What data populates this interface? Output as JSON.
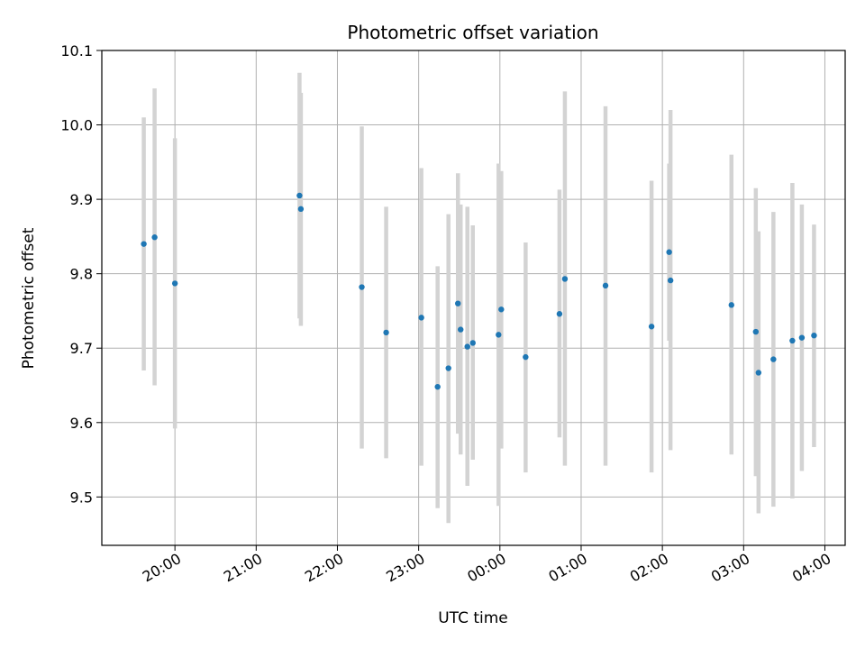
{
  "chart_data": {
    "type": "scatter",
    "title": "Photometric offset variation",
    "xlabel": "UTC time",
    "ylabel": "Photometric offset",
    "grid": true,
    "x_ticks": [
      "20:00",
      "21:00",
      "22:00",
      "23:00",
      "00:00",
      "01:00",
      "02:00",
      "03:00",
      "04:00"
    ],
    "x_tick_minutes": [
      1200,
      1260,
      1320,
      1380,
      1440,
      1500,
      1560,
      1620,
      1680
    ],
    "y_ticks": [
      "9.5",
      "9.6",
      "9.7",
      "9.8",
      "9.9",
      "10.0",
      "10.1"
    ],
    "y_tick_values": [
      9.5,
      9.6,
      9.7,
      9.8,
      9.9,
      10.0,
      10.1
    ],
    "xlim_minutes": [
      1146,
      1695
    ],
    "ylim": [
      9.435,
      10.1
    ],
    "marker_color": "#1f77b4",
    "errorbar_color": "#d3d3d3",
    "points": [
      {
        "t": "19:37",
        "y": 9.84,
        "lo": 9.67,
        "hi": 10.01
      },
      {
        "t": "19:45",
        "y": 9.849,
        "lo": 9.65,
        "hi": 10.049
      },
      {
        "t": "20:00",
        "y": 9.787,
        "lo": 9.592,
        "hi": 9.982
      },
      {
        "t": "21:32",
        "y": 9.905,
        "lo": 9.74,
        "hi": 10.07
      },
      {
        "t": "21:33",
        "y": 9.887,
        "lo": 9.73,
        "hi": 10.043
      },
      {
        "t": "22:18",
        "y": 9.782,
        "lo": 9.565,
        "hi": 9.998
      },
      {
        "t": "22:36",
        "y": 9.721,
        "lo": 9.552,
        "hi": 9.89
      },
      {
        "t": "23:02",
        "y": 9.741,
        "lo": 9.542,
        "hi": 9.942
      },
      {
        "t": "23:14",
        "y": 9.648,
        "lo": 9.485,
        "hi": 9.81
      },
      {
        "t": "23:22",
        "y": 9.673,
        "lo": 9.465,
        "hi": 9.88
      },
      {
        "t": "23:29",
        "y": 9.76,
        "lo": 9.585,
        "hi": 9.935
      },
      {
        "t": "23:31",
        "y": 9.725,
        "lo": 9.557,
        "hi": 9.893
      },
      {
        "t": "23:36",
        "y": 9.702,
        "lo": 9.515,
        "hi": 9.89
      },
      {
        "t": "23:40",
        "y": 9.707,
        "lo": 9.55,
        "hi": 9.865
      },
      {
        "t": "23:59",
        "y": 9.718,
        "lo": 9.488,
        "hi": 9.948
      },
      {
        "t": "00:01",
        "y": 9.752,
        "lo": 9.565,
        "hi": 9.938
      },
      {
        "t": "00:19",
        "y": 9.688,
        "lo": 9.533,
        "hi": 9.842
      },
      {
        "t": "00:44",
        "y": 9.746,
        "lo": 9.58,
        "hi": 9.913
      },
      {
        "t": "00:48",
        "y": 9.793,
        "lo": 9.542,
        "hi": 10.045
      },
      {
        "t": "01:18",
        "y": 9.784,
        "lo": 9.542,
        "hi": 10.025
      },
      {
        "t": "01:52",
        "y": 9.729,
        "lo": 9.533,
        "hi": 9.925
      },
      {
        "t": "02:05",
        "y": 9.829,
        "lo": 9.71,
        "hi": 9.948
      },
      {
        "t": "02:06",
        "y": 9.791,
        "lo": 9.563,
        "hi": 10.02
      },
      {
        "t": "02:51",
        "y": 9.758,
        "lo": 9.557,
        "hi": 9.96
      },
      {
        "t": "03:09",
        "y": 9.722,
        "lo": 9.528,
        "hi": 9.915
      },
      {
        "t": "03:11",
        "y": 9.667,
        "lo": 9.478,
        "hi": 9.857
      },
      {
        "t": "03:22",
        "y": 9.685,
        "lo": 9.487,
        "hi": 9.883
      },
      {
        "t": "03:36",
        "y": 9.71,
        "lo": 9.498,
        "hi": 9.922
      },
      {
        "t": "03:43",
        "y": 9.714,
        "lo": 9.535,
        "hi": 9.893
      },
      {
        "t": "03:52",
        "y": 9.717,
        "lo": 9.567,
        "hi": 9.866
      }
    ]
  }
}
